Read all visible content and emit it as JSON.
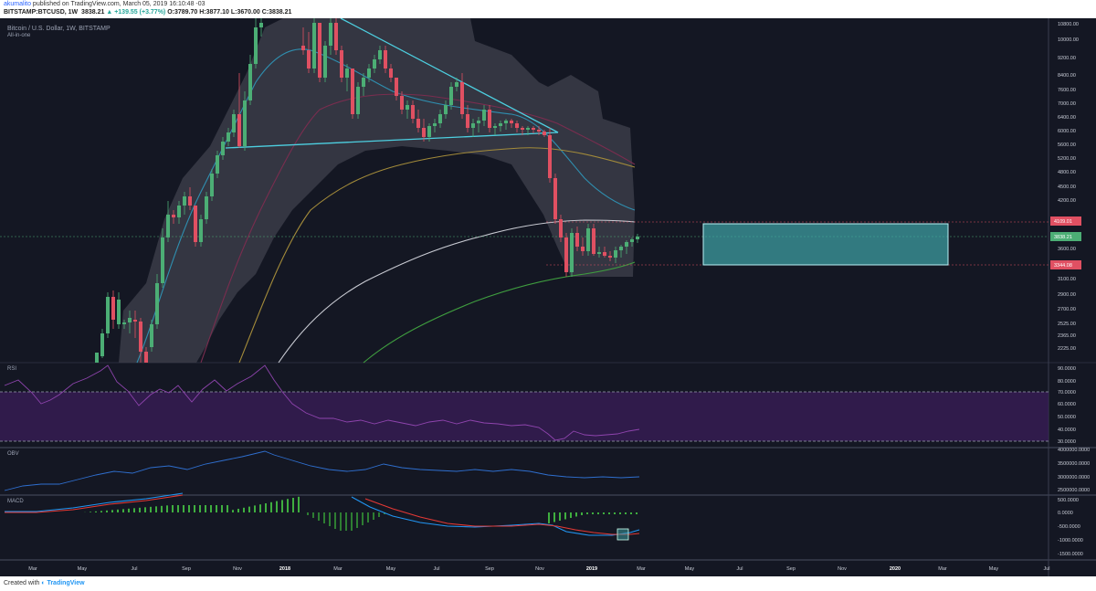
{
  "header": {
    "author": "akumalito",
    "published_text": "published on TradingView.com, March 05, 2019 16:10:48 -03",
    "symbol": "BITSTAMP:BTCUSD, 1W",
    "last": "3838.21",
    "change": "+139.55 (+3.77%)",
    "ohlc": "O:3789.70 H:3877.10 L:3670.00 C:3838.21"
  },
  "pane_main": {
    "title": "Bitcoin / U.S. Dollar, 1W, BITSTAMP",
    "subtitle": "All-in-one",
    "price_axis": [
      "10800.00",
      "10000.00",
      "9200.00",
      "8400.00",
      "7600.00",
      "7000.00",
      "6400.00",
      "6000.00",
      "5600.00",
      "5200.00",
      "4800.00",
      "4500.00",
      "4200.00",
      "3600.00",
      "3300.00",
      "3100.00",
      "2900.00",
      "2700.00",
      "2525.00",
      "2365.00",
      "2225.00"
    ],
    "badge_resistance": "4109.01",
    "badge_last": "3838.21",
    "badge_support": "3344.08"
  },
  "pane_rsi": {
    "label": "RSI",
    "axis": [
      "90.0000",
      "80.0000",
      "70.0000",
      "60.0000",
      "50.0000",
      "40.0000",
      "30.0000"
    ]
  },
  "pane_obv": {
    "label": "OBV",
    "axis": [
      "4000000.0000",
      "3500000.0000",
      "3000000.0000",
      "2500000.0000"
    ]
  },
  "pane_macd": {
    "label": "MACD",
    "axis": [
      "500.0000",
      "0.0000",
      "-500.0000",
      "-1000.0000",
      "-1500.0000"
    ]
  },
  "time_axis": [
    "Mar",
    "May",
    "Jul",
    "Sep",
    "Nov",
    "2018",
    "Mar",
    "May",
    "Jul",
    "Sep",
    "Nov",
    "2019",
    "Mar",
    "May",
    "Jul",
    "Sep",
    "Nov",
    "2020",
    "Mar",
    "May",
    "Jul"
  ],
  "footer": {
    "created_with": "Created with",
    "brand": "TradingView"
  },
  "colors": {
    "up": "#4cae75",
    "down": "#e05062",
    "bg": "#141723",
    "trend": "#4dd0e1",
    "box": "#4dd0e1"
  }
}
